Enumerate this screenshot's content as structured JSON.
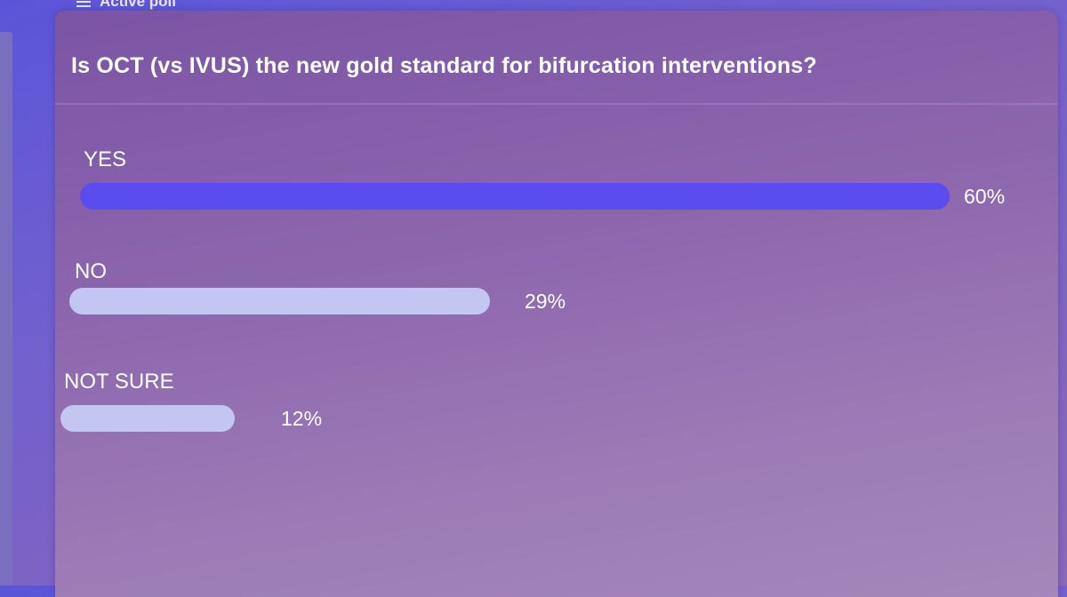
{
  "header": {
    "label": "Active poll",
    "icon": "list-icon"
  },
  "poll": {
    "question": "Is OCT (vs IVUS) the new gold standard for bifurcation interventions?",
    "options": [
      {
        "label": "YES",
        "percent_text": "60%",
        "value": 0.6,
        "color": "#5b4cf0"
      },
      {
        "label": "NO",
        "percent_text": "29%",
        "value": 0.29,
        "color": "#c2c6f0"
      },
      {
        "label": "NOT SURE",
        "percent_text": "12%",
        "value": 0.12,
        "color": "#c2c6f0"
      }
    ]
  },
  "colors": {
    "background": "#6a5dd2",
    "panel": "#8c66ad",
    "leading_bar": "#5b4cf0",
    "other_bar": "#c2c6f0"
  }
}
